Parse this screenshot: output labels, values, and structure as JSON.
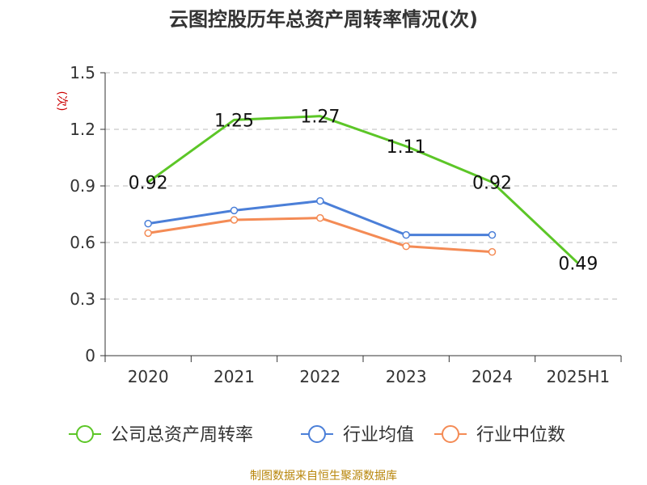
{
  "chart_data": {
    "type": "line",
    "title": "云图控股历年总资产周转率情况(次)",
    "ylabel": "(次)",
    "xlabel": "",
    "categories": [
      "2020",
      "2021",
      "2022",
      "2023",
      "2024",
      "2025H1"
    ],
    "ylim": [
      0,
      1.5
    ],
    "yticks": [
      "0",
      "0.3",
      "0.6",
      "0.9",
      "1.2",
      "1.5"
    ],
    "grid": true,
    "legend_position": "bottom",
    "series": [
      {
        "name": "公司总资产周转率",
        "color": "#5cc627",
        "values": [
          0.92,
          1.25,
          1.27,
          1.11,
          0.92,
          0.49
        ],
        "labels": [
          "0.92",
          "1.25",
          "1.27",
          "1.11",
          "0.92",
          "0.49"
        ]
      },
      {
        "name": "行业均值",
        "color": "#4b7fd8",
        "values": [
          0.7,
          0.77,
          0.82,
          0.64,
          0.64,
          null
        ]
      },
      {
        "name": "行业中位数",
        "color": "#f48b55",
        "values": [
          0.65,
          0.72,
          0.73,
          0.58,
          0.55,
          null
        ]
      }
    ]
  },
  "source": "制图数据来自恒生聚源数据库"
}
